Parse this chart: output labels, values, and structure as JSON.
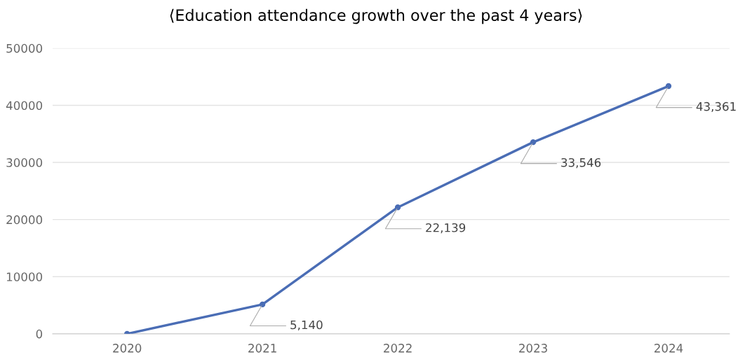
{
  "chart_data": {
    "type": "line",
    "title": "⟨Education attendance growth over the past 4 years⟩",
    "categories": [
      "2020",
      "2021",
      "2022",
      "2023",
      "2024"
    ],
    "series": [
      {
        "color": "#4a6db5",
        "values": [
          0,
          5140,
          22139,
          33546,
          43361
        ],
        "value_labels": [
          null,
          "5,140",
          "22,139",
          "33,546",
          "43,361"
        ]
      }
    ],
    "ylim": [
      0,
      50000
    ],
    "yticks": [
      0,
      10000,
      20000,
      30000,
      40000,
      50000
    ],
    "grid": "y",
    "marker": "circle",
    "line_style": "solid"
  }
}
